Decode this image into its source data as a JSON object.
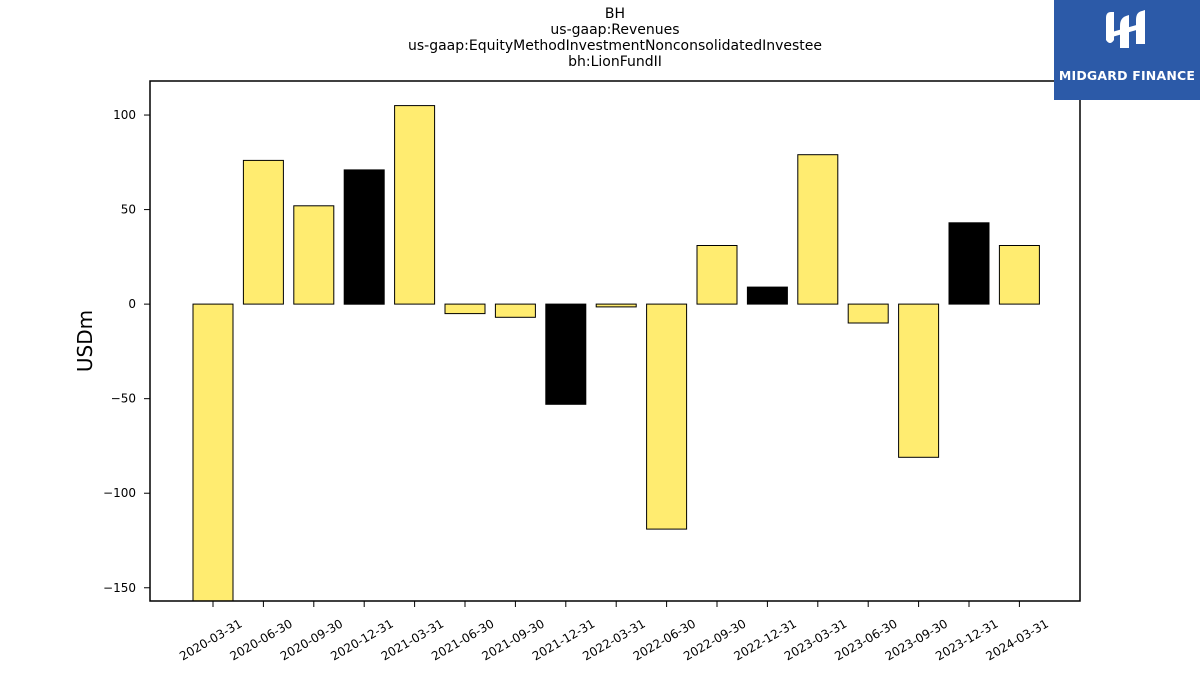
{
  "chart_data": {
    "type": "bar",
    "title_lines": [
      "BH",
      "us-gaap:Revenues",
      "us-gaap:EquityMethodInvestmentNonconsolidatedInvestee",
      "bh:LionFundII"
    ],
    "ylabel": "USDm",
    "xlabel": "",
    "ylim": [
      -157,
      118
    ],
    "yticks": [
      100,
      50,
      0,
      -50,
      -100,
      -150
    ],
    "ytick_labels": [
      "100",
      "50",
      "0",
      "−50",
      "−100",
      "−150"
    ],
    "grid": false,
    "categories": [
      "2020-03-31",
      "2020-06-30",
      "2020-09-30",
      "2020-12-31",
      "2021-03-31",
      "2021-06-30",
      "2021-09-30",
      "2021-12-31",
      "2022-03-31",
      "2022-06-30",
      "2022-09-30",
      "2022-12-31",
      "2023-03-31",
      "2023-06-30",
      "2023-09-30",
      "2023-12-31",
      "2024-03-31"
    ],
    "values": [
      -157,
      76,
      52,
      71,
      105,
      -5,
      -7,
      -53,
      -1.5,
      -119,
      31,
      9,
      79,
      -10,
      -81,
      43,
      31
    ],
    "colors": [
      "#ffec70",
      "#ffec70",
      "#ffec70",
      "#000000",
      "#ffec70",
      "#ffec70",
      "#ffec70",
      "#000000",
      "#ffec70",
      "#ffec70",
      "#ffec70",
      "#000000",
      "#ffec70",
      "#ffec70",
      "#ffec70",
      "#000000",
      "#ffec70"
    ]
  },
  "logo": {
    "text": "MIDGARD FINANCE",
    "bg_color": "#2c5aa8"
  }
}
